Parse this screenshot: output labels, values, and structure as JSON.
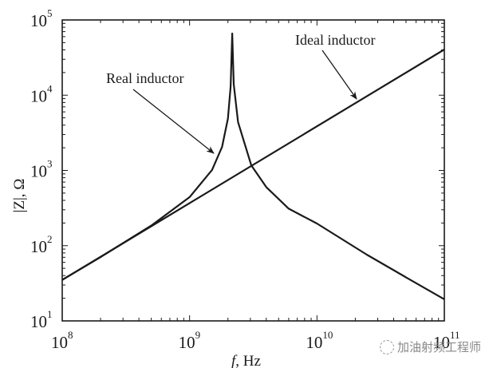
{
  "chart_data": {
    "type": "line",
    "title": "",
    "xlabel": "f, Hz",
    "ylabel": "|Z|, Ω",
    "xscale": "log",
    "yscale": "log",
    "xlim": [
      100000000.0,
      100000000000.0
    ],
    "ylim": [
      10.0,
      100000.0
    ],
    "x_ticks": [
      {
        "value": 100000000.0,
        "base": "10",
        "exp": "8"
      },
      {
        "value": 1000000000.0,
        "base": "10",
        "exp": "9"
      },
      {
        "value": 10000000000.0,
        "base": "10",
        "exp": "10"
      },
      {
        "value": 100000000000.0,
        "base": "10",
        "exp": "11"
      }
    ],
    "y_ticks": [
      {
        "value": 10.0,
        "base": "10",
        "exp": "1"
      },
      {
        "value": 100.0,
        "base": "10",
        "exp": "2"
      },
      {
        "value": 1000.0,
        "base": "10",
        "exp": "3"
      },
      {
        "value": 10000.0,
        "base": "10",
        "exp": "4"
      },
      {
        "value": 100000.0,
        "base": "10",
        "exp": "5"
      }
    ],
    "grid": false,
    "legend": null,
    "series": [
      {
        "name": "Ideal inductor",
        "x": [
          100000000.0,
          100000000000.0
        ],
        "values": [
          35,
          40500
        ]
      },
      {
        "name": "Real inductor",
        "x": [
          100000000.0,
          200000000.0,
          500000000.0,
          1000000000.0,
          1500000000.0,
          1800000000.0,
          2000000000.0,
          2100000000.0,
          2160000000.0,
          2220000000.0,
          2400000000.0,
          3050000000.0,
          4000000000.0,
          6000000000.0,
          10000000000.0,
          24600000000.0,
          50000000000.0,
          100000000000.0
        ],
        "values": [
          35.1,
          70.6,
          185,
          442,
          1014,
          2060,
          4880,
          13000,
          66000,
          14000,
          4400,
          1170,
          600,
          310,
          197,
          76,
          38,
          19.4
        ]
      }
    ],
    "annotations": [
      {
        "text": "Real inductor",
        "x": 133,
        "y": 104,
        "arrow_from": [
          167,
          112
        ],
        "arrow_to": [
          268,
          192
        ]
      },
      {
        "text": "Ideal inductor",
        "x": 370,
        "y": 56,
        "arrow_from": [
          404,
          63
        ],
        "arrow_to": [
          447,
          124
        ]
      }
    ]
  },
  "watermark": {
    "text": "加油射频工程师",
    "icon": "wechat-icon"
  }
}
